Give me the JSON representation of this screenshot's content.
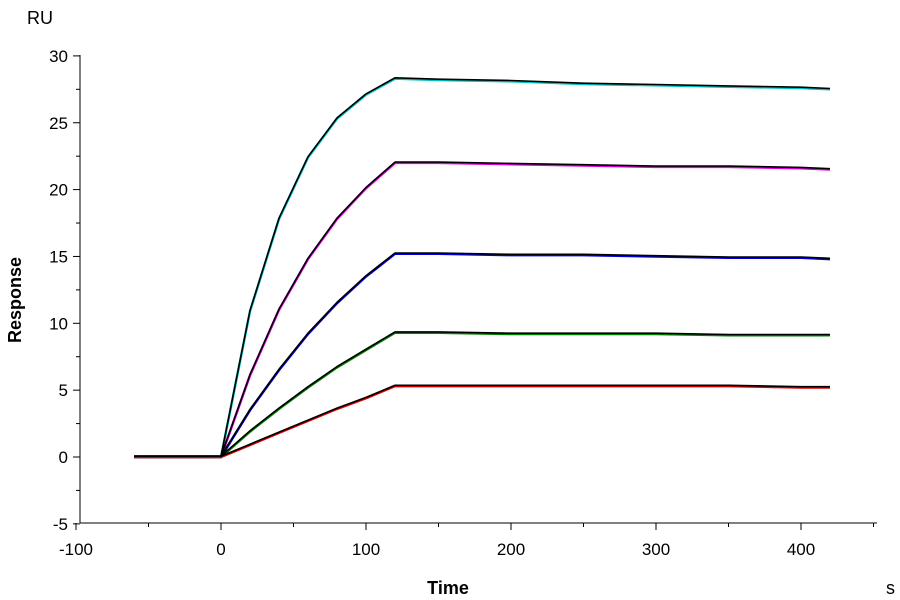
{
  "chart_data": {
    "type": "line",
    "title": "",
    "xlabel": "Time",
    "ylabel": "Response",
    "x_unit": "s",
    "y_unit": "RU",
    "xlim": [
      -100,
      450
    ],
    "ylim": [
      -5,
      30
    ],
    "x_ticks": [
      -100,
      0,
      100,
      200,
      300,
      400
    ],
    "y_ticks": [
      -5,
      0,
      5,
      10,
      15,
      20,
      25,
      30
    ],
    "grid": false,
    "legend": "none",
    "fit_color": "#000000",
    "x": [
      -60,
      -40,
      -20,
      0,
      20,
      40,
      60,
      80,
      100,
      120,
      150,
      200,
      250,
      300,
      350,
      400,
      420
    ],
    "series": [
      {
        "color": "#00c0c0",
        "values": [
          0,
          0,
          0,
          0,
          10.9,
          17.8,
          22.4,
          25.3,
          27.1,
          28.3,
          28.2,
          28.1,
          27.9,
          27.8,
          27.7,
          27.6,
          27.5
        ]
      },
      {
        "color": "#e000e0",
        "values": [
          0,
          0,
          0,
          0,
          6.1,
          11.0,
          14.8,
          17.8,
          20.1,
          22.0,
          22.0,
          21.9,
          21.8,
          21.7,
          21.7,
          21.6,
          21.5
        ]
      },
      {
        "color": "#0000e0",
        "values": [
          0,
          0,
          0,
          0,
          3.5,
          6.5,
          9.2,
          11.5,
          13.5,
          15.2,
          15.2,
          15.1,
          15.1,
          15.0,
          14.9,
          14.9,
          14.8
        ]
      },
      {
        "color": "#008000",
        "values": [
          0,
          0,
          0,
          0,
          1.9,
          3.6,
          5.2,
          6.7,
          8.0,
          9.3,
          9.3,
          9.2,
          9.2,
          9.2,
          9.1,
          9.1,
          9.1
        ]
      },
      {
        "color": "#e00000",
        "values": [
          0,
          0,
          0,
          0,
          0.9,
          1.8,
          2.7,
          3.6,
          4.4,
          5.3,
          5.3,
          5.3,
          5.3,
          5.3,
          5.3,
          5.2,
          5.2
        ]
      }
    ]
  }
}
